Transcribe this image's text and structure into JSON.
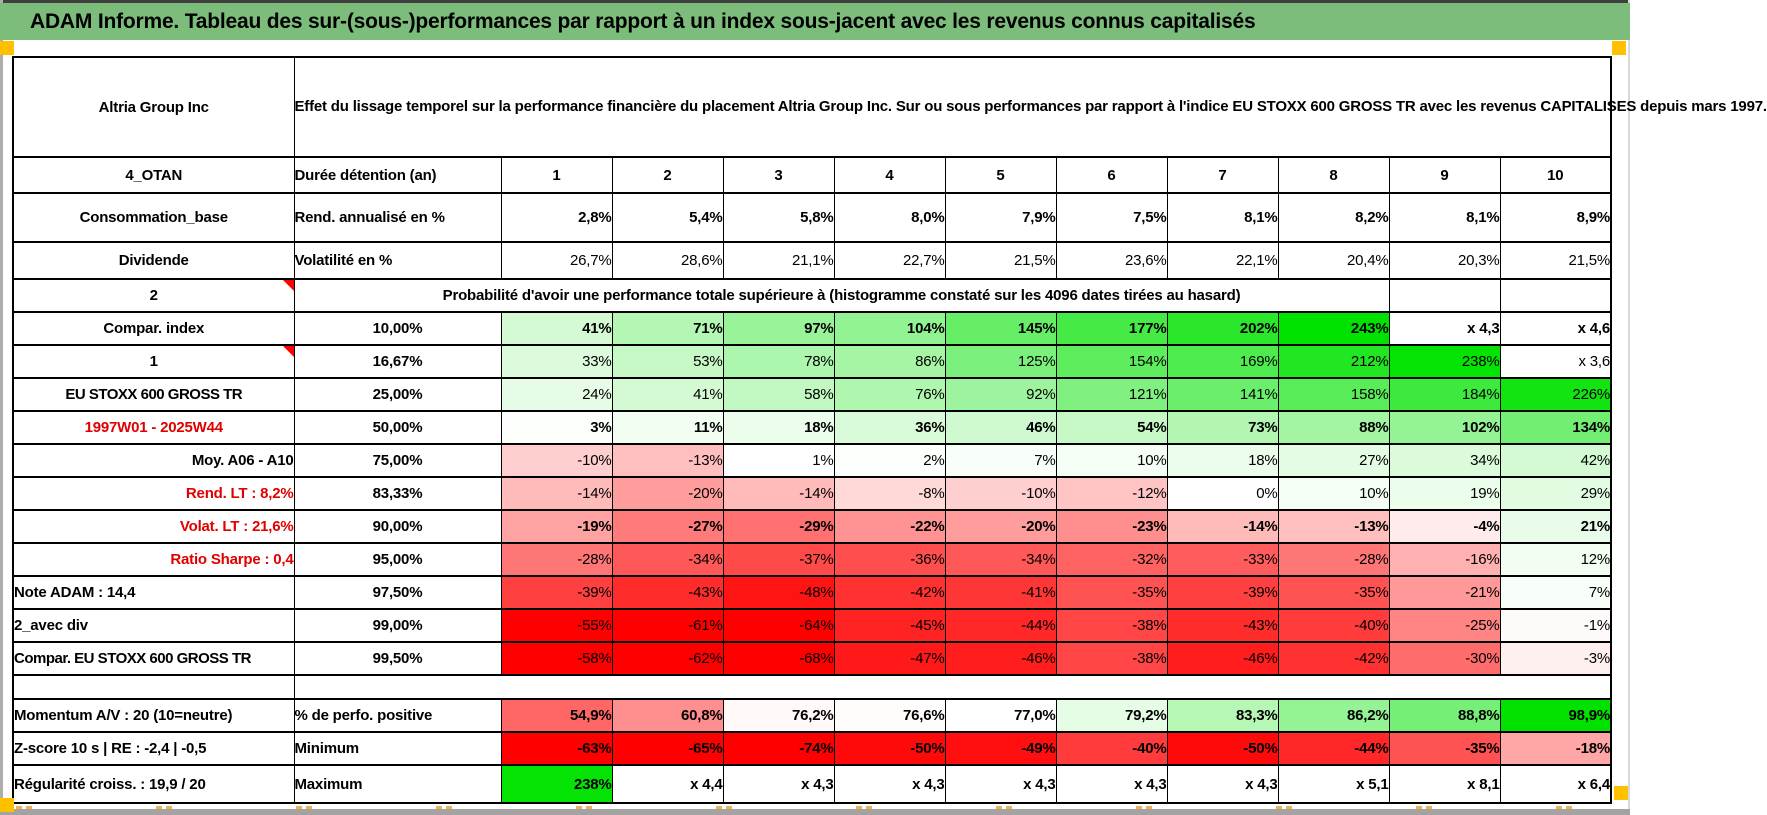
{
  "title": "ADAM Informe. Tableau des sur-(sous-)performances par rapport à un index sous-jacent avec les revenus connus capitalisés",
  "header": {
    "asset": "Altria Group Inc",
    "description": "Effet du lissage temporel sur la performance financière du placement Altria Group Inc. Sur ou sous performances par rapport à l'indice EU STOXX 600 GROSS TR avec les revenus CAPITALISES depuis mars 1997."
  },
  "colors": {
    "green_header": "#7CBD7C",
    "label_green": "#76AF76",
    "bright_green": "#08DF08",
    "orange": "#FFC000",
    "yellow": "#FFFF00",
    "sage": "#A9C28E",
    "light_green": "#CBE5C6",
    "gray_label": "#EFEFEF",
    "scale_green": "#00E200",
    "scale_red": "#FF0000",
    "red_text": "#E00000",
    "tick": "#E8A23B",
    "bottom_gray": "#A3A3A3"
  },
  "table": {
    "rows": [
      {
        "label": "4_OTAN",
        "labelStyle": "green",
        "param": "Durée détention (an)",
        "paramStyle": "text",
        "cells": [
          "1",
          "2",
          "3",
          "4",
          "5",
          "6",
          "7",
          "8",
          "9",
          "10"
        ],
        "fill": "none",
        "bold": true,
        "centerCells": true
      },
      {
        "label": "Consommation_base",
        "labelStyle": "green",
        "param": "Rend. annualisé en %",
        "paramStyle": "text",
        "cells": [
          "2,8%",
          "5,4%",
          "5,8%",
          "8,0%",
          "7,9%",
          "7,5%",
          "8,1%",
          "8,2%",
          "8,1%",
          "8,9%"
        ],
        "fill": "lightgreen",
        "bold": true
      },
      {
        "label": "Dividende",
        "labelStyle": "green",
        "param": "Volatilité en %",
        "paramStyle": "text",
        "cells": [
          "26,7%",
          "28,6%",
          "21,1%",
          "22,7%",
          "21,5%",
          "23,6%",
          "22,1%",
          "20,4%",
          "20,3%",
          "21,5%"
        ],
        "fill": "orange"
      },
      {
        "label": "2",
        "labelStyle": "bright",
        "note": true,
        "span": "Probabilité d'avoir une performance totale supérieure à (histogramme constaté sur les 4096 dates tirées au hasard)",
        "spanCols": 9,
        "emptyCells": 2
      },
      {
        "label": "Compar. index",
        "labelStyle": "green",
        "param": "10,00%",
        "paramStyle": "orange",
        "cells": [
          "41%",
          "71%",
          "97%",
          "104%",
          "145%",
          "177%",
          "202%",
          "243%",
          "x 4,3",
          "x 4,6"
        ],
        "fill": "scale",
        "bold": true
      },
      {
        "label": "1",
        "labelStyle": "bright",
        "note": true,
        "param": "16,67%",
        "paramStyle": "pct",
        "cells": [
          "33%",
          "53%",
          "78%",
          "86%",
          "125%",
          "154%",
          "169%",
          "212%",
          "238%",
          "x 3,6"
        ],
        "fill": "scale"
      },
      {
        "label": "EU STOXX 600 GROSS TR",
        "labelStyle": "green",
        "labelSmall": true,
        "param": "25,00%",
        "paramStyle": "pct",
        "cells": [
          "24%",
          "41%",
          "58%",
          "76%",
          "92%",
          "121%",
          "141%",
          "158%",
          "184%",
          "226%"
        ],
        "fill": "scale"
      },
      {
        "label": "1997W01 - 2025W44",
        "labelStyle": "redc",
        "param": "50,00%",
        "paramStyle": "sage",
        "cells": [
          "3%",
          "11%",
          "18%",
          "36%",
          "46%",
          "54%",
          "73%",
          "88%",
          "102%",
          "134%"
        ],
        "fill": "scale",
        "bold": true,
        "big": true
      },
      {
        "label": "Moy. A06 - A10",
        "labelStyle": "yelr",
        "param": "75,00%",
        "paramStyle": "pct",
        "cells": [
          "-10%",
          "-13%",
          "1%",
          "2%",
          "7%",
          "10%",
          "18%",
          "27%",
          "34%",
          "42%"
        ],
        "fill": "scale"
      },
      {
        "label": "Rend. LT :  8,2%",
        "labelStyle": "redr",
        "param": "83,33%",
        "paramStyle": "pct",
        "cells": [
          "-14%",
          "-20%",
          "-14%",
          "-8%",
          "-10%",
          "-12%",
          "0%",
          "10%",
          "19%",
          "29%"
        ],
        "fill": "scale"
      },
      {
        "label": "Volat. LT :  21,6%",
        "labelStyle": "redr",
        "param": "90,00%",
        "paramStyle": "orange",
        "cells": [
          "-19%",
          "-27%",
          "-29%",
          "-22%",
          "-20%",
          "-23%",
          "-14%",
          "-13%",
          "-4%",
          "21%"
        ],
        "fill": "scale",
        "bold": true
      },
      {
        "label": "Ratio Sharpe :  0,4",
        "labelStyle": "redr",
        "param": "95,00%",
        "paramStyle": "pct",
        "cells": [
          "-28%",
          "-34%",
          "-37%",
          "-36%",
          "-34%",
          "-32%",
          "-33%",
          "-28%",
          "-16%",
          "12%"
        ],
        "fill": "scale"
      },
      {
        "label": "Note ADAM : 14,4",
        "labelStyle": "yell",
        "param": "97,50%",
        "paramStyle": "pct",
        "cells": [
          "-39%",
          "-43%",
          "-48%",
          "-42%",
          "-41%",
          "-35%",
          "-39%",
          "-35%",
          "-21%",
          "7%"
        ],
        "fill": "scale"
      },
      {
        "label": "2_avec div",
        "labelStyle": "yell",
        "param": "99,00%",
        "paramStyle": "pct",
        "cells": [
          "-55%",
          "-61%",
          "-64%",
          "-45%",
          "-44%",
          "-38%",
          "-43%",
          "-40%",
          "-25%",
          "-1%"
        ],
        "fill": "scale"
      },
      {
        "label": "Compar. EU STOXX 600 GROSS TR",
        "labelStyle": "white",
        "labelSmall": true,
        "param": "99,50%",
        "paramStyle": "pct",
        "cells": [
          "-58%",
          "-62%",
          "-68%",
          "-47%",
          "-46%",
          "-38%",
          "-46%",
          "-42%",
          "-30%",
          "-3%"
        ],
        "fill": "scale"
      },
      {
        "gap": true
      },
      {
        "label": "Momentum A/V : 20 (10=neutre)",
        "labelStyle": "gray",
        "param": "% de perfo. positive",
        "paramStyle": "text",
        "cells": [
          "54,9%",
          "60,8%",
          "76,2%",
          "76,6%",
          "77,0%",
          "79,2%",
          "83,3%",
          "86,2%",
          "88,8%",
          "98,9%"
        ],
        "fill": "perfo",
        "bold": true
      },
      {
        "label": "Z-score 10 s | RE : -2,4 | -0,5",
        "labelStyle": "gray",
        "param": "Minimum",
        "paramStyle": "text",
        "cells": [
          "-63%",
          "-65%",
          "-74%",
          "-50%",
          "-49%",
          "-40%",
          "-50%",
          "-44%",
          "-35%",
          "-18%"
        ],
        "fill": "scale",
        "bold": true
      },
      {
        "label": "Régularité croiss. : 19,9 / 20",
        "labelStyle": "gray",
        "param": "Maximum",
        "paramStyle": "text",
        "cells": [
          "238%",
          "x 4,4",
          "x 4,3",
          "x 4,3",
          "x 4,3",
          "x 4,3",
          "x 4,3",
          "x 5,1",
          "x 8,1",
          "x 6,4"
        ],
        "fill": "scale",
        "bold": true
      }
    ]
  }
}
